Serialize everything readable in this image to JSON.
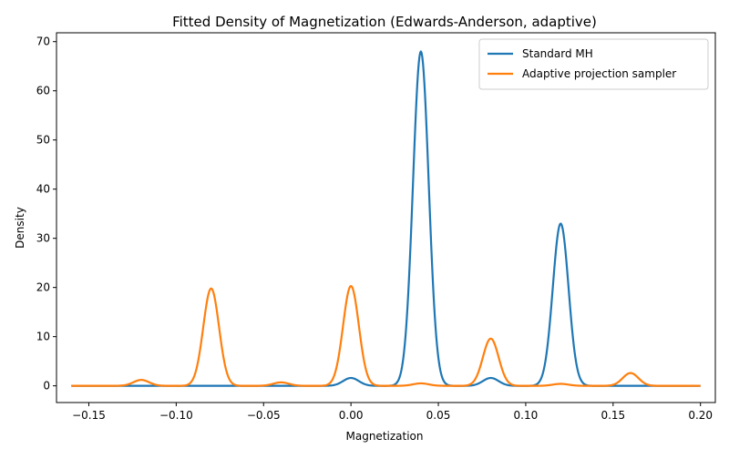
{
  "chart_data": {
    "type": "line",
    "title": "Fitted Density of Magnetization (Edwards-Anderson, adaptive)",
    "xlabel": "Magnetization",
    "ylabel": "Density",
    "xlim": [
      -0.1685,
      0.2085
    ],
    "ylim": [
      -3.4,
      71.8
    ],
    "xticks": [
      -0.15,
      -0.1,
      -0.05,
      0.0,
      0.05,
      0.1,
      0.15,
      0.2
    ],
    "xtick_labels": [
      "−0.15",
      "−0.10",
      "−0.05",
      "0.00",
      "0.05",
      "0.10",
      "0.15",
      "0.20"
    ],
    "yticks": [
      0,
      10,
      20,
      30,
      40,
      50,
      60,
      70
    ],
    "ytick_labels": [
      "0",
      "10",
      "20",
      "30",
      "40",
      "50",
      "60",
      "70"
    ],
    "grid": false,
    "legend_position": "upper right",
    "x_range": [
      -0.16,
      0.2
    ],
    "series": [
      {
        "name": "Standard MH",
        "color": "#1f77b4",
        "peaks": [
          {
            "x": 0.0,
            "height": 1.6
          },
          {
            "x": 0.04,
            "height": 68.0
          },
          {
            "x": 0.08,
            "height": 1.6
          },
          {
            "x": 0.12,
            "height": 33.0
          }
        ]
      },
      {
        "name": "Adaptive projection sampler",
        "color": "#ff7f0e",
        "peaks": [
          {
            "x": -0.12,
            "height": 1.2
          },
          {
            "x": -0.08,
            "height": 19.8
          },
          {
            "x": -0.04,
            "height": 0.7
          },
          {
            "x": 0.0,
            "height": 20.3
          },
          {
            "x": 0.04,
            "height": 0.5
          },
          {
            "x": 0.08,
            "height": 9.6
          },
          {
            "x": 0.12,
            "height": 0.4
          },
          {
            "x": 0.16,
            "height": 2.6
          }
        ]
      }
    ]
  }
}
